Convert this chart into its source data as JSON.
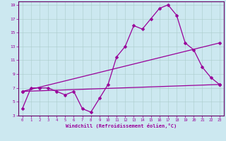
{
  "line1_x": [
    0,
    1,
    2,
    3,
    4,
    5,
    6,
    7,
    8,
    9,
    10,
    11,
    12,
    13,
    14,
    15,
    16,
    17,
    18,
    19,
    20,
    21,
    22,
    23
  ],
  "line1_y": [
    4.0,
    7.0,
    7.0,
    7.0,
    6.5,
    6.0,
    6.5,
    4.0,
    3.5,
    5.5,
    7.5,
    11.5,
    13.0,
    16.0,
    15.5,
    17.0,
    18.5,
    19.0,
    17.5,
    13.5,
    12.5,
    10.0,
    8.5,
    7.5
  ],
  "line2_x": [
    0,
    23
  ],
  "line2_y": [
    6.5,
    7.5
  ],
  "line3_x": [
    0,
    23
  ],
  "line3_y": [
    6.5,
    13.5
  ],
  "line_color": "#990099",
  "bg_color": "#cce8f0",
  "grid_color": "#aacccc",
  "xlabel": "Windchill (Refroidissement éolien,°C)",
  "xlabel_color": "#990099",
  "tick_color": "#990099",
  "axis_color": "#660066",
  "xlim": [
    -0.5,
    23.5
  ],
  "ylim": [
    3.0,
    19.5
  ],
  "xticks": [
    0,
    1,
    2,
    3,
    4,
    5,
    6,
    7,
    8,
    9,
    10,
    11,
    12,
    13,
    14,
    15,
    16,
    17,
    18,
    19,
    20,
    21,
    22,
    23
  ],
  "yticks": [
    3,
    5,
    7,
    9,
    11,
    13,
    15,
    17,
    19
  ],
  "marker": "D",
  "markersize": 2.5,
  "linewidth": 0.9
}
